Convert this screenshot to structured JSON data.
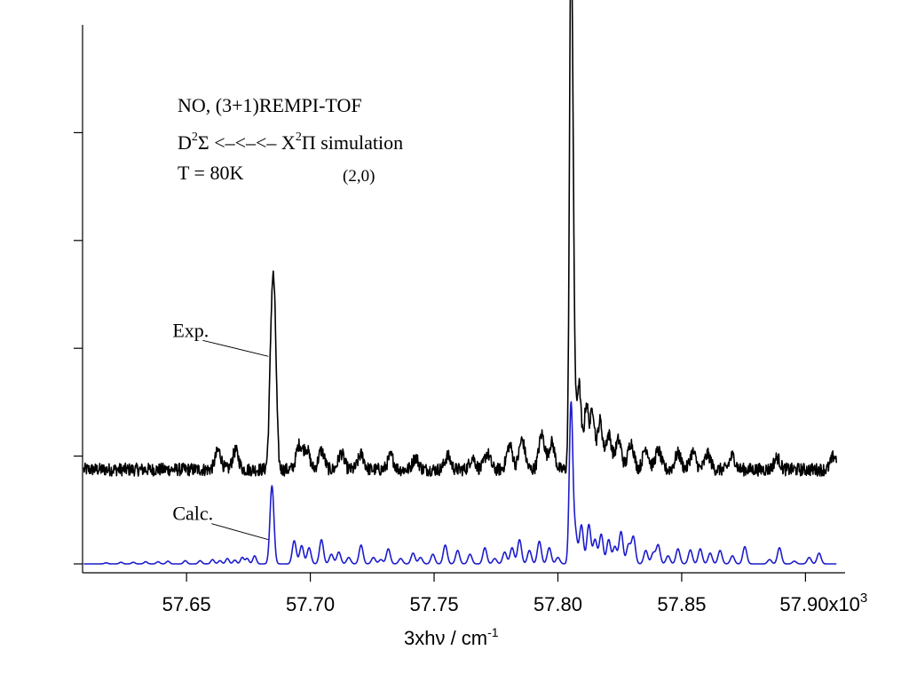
{
  "chart_data": {
    "type": "line",
    "xlabel_main": "3xhν / cm",
    "xlabel_sup": "-1",
    "x_multiplier_label": "x10",
    "x_multiplier_exp": "3",
    "xlim": [
      57.608,
      57.916
    ],
    "x_tick_values": [
      57.65,
      57.7,
      57.75,
      57.8,
      57.85,
      57.9
    ],
    "x_tick_labels": [
      "57.65",
      "57.70",
      "57.75",
      "57.80",
      "57.85",
      "57.90"
    ],
    "ylim": [
      0,
      1.0
    ],
    "y_tick_values": [
      0.0,
      0.2,
      0.4,
      0.6,
      0.8
    ],
    "annotations": {
      "line1": "NO, (3+1)REMPI-TOF",
      "line2_a": "D",
      "line2_a_sup": "2",
      "line2_b": "Σ <–<–<–  X",
      "line2_b_sup": "2",
      "line2_c": "Π simulation",
      "line3": "T = 80K",
      "band": "(2,0)"
    },
    "series": [
      {
        "name": "Exp.",
        "color": "#000000",
        "baseline": 0.175,
        "noise": 0.012,
        "peaks": [
          [
            57.6845,
            0.27,
            0.0009
          ],
          [
            57.6857,
            0.19,
            0.0008
          ],
          [
            57.6628,
            0.035,
            0.0012
          ],
          [
            57.6698,
            0.035,
            0.0012
          ],
          [
            57.6955,
            0.045,
            0.0012
          ],
          [
            57.6985,
            0.038,
            0.0012
          ],
          [
            57.7045,
            0.035,
            0.0012
          ],
          [
            57.7125,
            0.03,
            0.0012
          ],
          [
            57.7205,
            0.028,
            0.0012
          ],
          [
            57.7325,
            0.025,
            0.0012
          ],
          [
            57.7425,
            0.022,
            0.0012
          ],
          [
            57.7555,
            0.025,
            0.0012
          ],
          [
            57.7655,
            0.022,
            0.0012
          ],
          [
            57.7715,
            0.03,
            0.0012
          ],
          [
            57.7805,
            0.045,
            0.0012
          ],
          [
            57.7855,
            0.055,
            0.0012
          ],
          [
            57.7935,
            0.065,
            0.0012
          ],
          [
            57.7975,
            0.05,
            0.0012
          ],
          [
            57.8052,
            0.77,
            0.0006
          ],
          [
            57.806,
            0.42,
            0.0007
          ],
          [
            57.8085,
            0.16,
            0.0009
          ],
          [
            57.8115,
            0.12,
            0.0009
          ],
          [
            57.814,
            0.11,
            0.0009
          ],
          [
            57.817,
            0.09,
            0.001
          ],
          [
            57.8205,
            0.065,
            0.0012
          ],
          [
            57.8245,
            0.055,
            0.0012
          ],
          [
            57.8295,
            0.05,
            0.0012
          ],
          [
            57.8355,
            0.04,
            0.0012
          ],
          [
            57.8405,
            0.035,
            0.0012
          ],
          [
            57.8485,
            0.03,
            0.0012
          ],
          [
            57.8545,
            0.032,
            0.0012
          ],
          [
            57.8605,
            0.028,
            0.0012
          ],
          [
            57.8705,
            0.025,
            0.0012
          ],
          [
            57.8885,
            0.022,
            0.0012
          ],
          [
            57.9115,
            0.025,
            0.0012
          ]
        ]
      },
      {
        "name": "Calc.",
        "color": "#1c1ccc",
        "baseline": 0.0,
        "noise": 0.0,
        "peaks": [
          [
            57.6175,
            0.002,
            0.0007
          ],
          [
            57.6235,
            0.003,
            0.0007
          ],
          [
            57.6285,
            0.003,
            0.0007
          ],
          [
            57.6335,
            0.004,
            0.0007
          ],
          [
            57.6385,
            0.004,
            0.0007
          ],
          [
            57.6425,
            0.005,
            0.0007
          ],
          [
            57.6495,
            0.006,
            0.0007
          ],
          [
            57.6555,
            0.006,
            0.0007
          ],
          [
            57.6605,
            0.008,
            0.0007
          ],
          [
            57.6635,
            0.006,
            0.0007
          ],
          [
            57.6665,
            0.01,
            0.0007
          ],
          [
            57.6695,
            0.007,
            0.0007
          ],
          [
            57.6725,
            0.012,
            0.0007
          ],
          [
            57.6745,
            0.01,
            0.0007
          ],
          [
            57.6775,
            0.015,
            0.0007
          ],
          [
            57.6845,
            0.145,
            0.0008
          ],
          [
            57.6935,
            0.043,
            0.0008
          ],
          [
            57.6965,
            0.034,
            0.0008
          ],
          [
            57.6995,
            0.03,
            0.0008
          ],
          [
            57.7045,
            0.045,
            0.0008
          ],
          [
            57.7085,
            0.018,
            0.0008
          ],
          [
            57.7115,
            0.022,
            0.0008
          ],
          [
            57.7155,
            0.012,
            0.0008
          ],
          [
            57.7205,
            0.035,
            0.0008
          ],
          [
            57.7255,
            0.012,
            0.0008
          ],
          [
            57.7285,
            0.008,
            0.0008
          ],
          [
            57.7315,
            0.028,
            0.0008
          ],
          [
            57.7365,
            0.01,
            0.0008
          ],
          [
            57.7415,
            0.02,
            0.0008
          ],
          [
            57.7445,
            0.012,
            0.0008
          ],
          [
            57.7495,
            0.018,
            0.0008
          ],
          [
            57.7545,
            0.035,
            0.0008
          ],
          [
            57.7595,
            0.025,
            0.0008
          ],
          [
            57.7645,
            0.018,
            0.0008
          ],
          [
            57.7705,
            0.03,
            0.0008
          ],
          [
            57.7745,
            0.01,
            0.0008
          ],
          [
            57.7785,
            0.022,
            0.0008
          ],
          [
            57.7815,
            0.03,
            0.0008
          ],
          [
            57.7845,
            0.045,
            0.0008
          ],
          [
            57.7885,
            0.025,
            0.0008
          ],
          [
            57.7925,
            0.042,
            0.0008
          ],
          [
            57.7965,
            0.03,
            0.0008
          ],
          [
            57.8,
            0.012,
            0.0008
          ],
          [
            57.8053,
            0.295,
            0.0007
          ],
          [
            57.807,
            0.06,
            0.0008
          ],
          [
            57.8095,
            0.072,
            0.0008
          ],
          [
            57.8125,
            0.073,
            0.0008
          ],
          [
            57.815,
            0.045,
            0.0008
          ],
          [
            57.8175,
            0.055,
            0.0008
          ],
          [
            57.8205,
            0.045,
            0.0008
          ],
          [
            57.823,
            0.032,
            0.0008
          ],
          [
            57.8255,
            0.06,
            0.0008
          ],
          [
            57.8285,
            0.035,
            0.0008
          ],
          [
            57.8305,
            0.05,
            0.0008
          ],
          [
            57.8355,
            0.025,
            0.0008
          ],
          [
            57.8385,
            0.02,
            0.0008
          ],
          [
            57.8405,
            0.035,
            0.0008
          ],
          [
            57.8445,
            0.015,
            0.0008
          ],
          [
            57.8485,
            0.028,
            0.0008
          ],
          [
            57.8535,
            0.026,
            0.0008
          ],
          [
            57.8575,
            0.028,
            0.0008
          ],
          [
            57.8615,
            0.02,
            0.0008
          ],
          [
            57.8655,
            0.025,
            0.0008
          ],
          [
            57.8705,
            0.015,
            0.0008
          ],
          [
            57.8755,
            0.032,
            0.0008
          ],
          [
            57.8855,
            0.008,
            0.0008
          ],
          [
            57.8895,
            0.03,
            0.0008
          ],
          [
            57.8955,
            0.005,
            0.0008
          ],
          [
            57.9015,
            0.012,
            0.0008
          ],
          [
            57.9055,
            0.02,
            0.0008
          ]
        ]
      }
    ],
    "series_labels": [
      {
        "text": "Exp.",
        "x_anchor": 57.6845,
        "y_anchor": 0.385
      },
      {
        "text": "Calc.",
        "x_anchor": 57.6845,
        "y_anchor": 0.045
      }
    ]
  }
}
